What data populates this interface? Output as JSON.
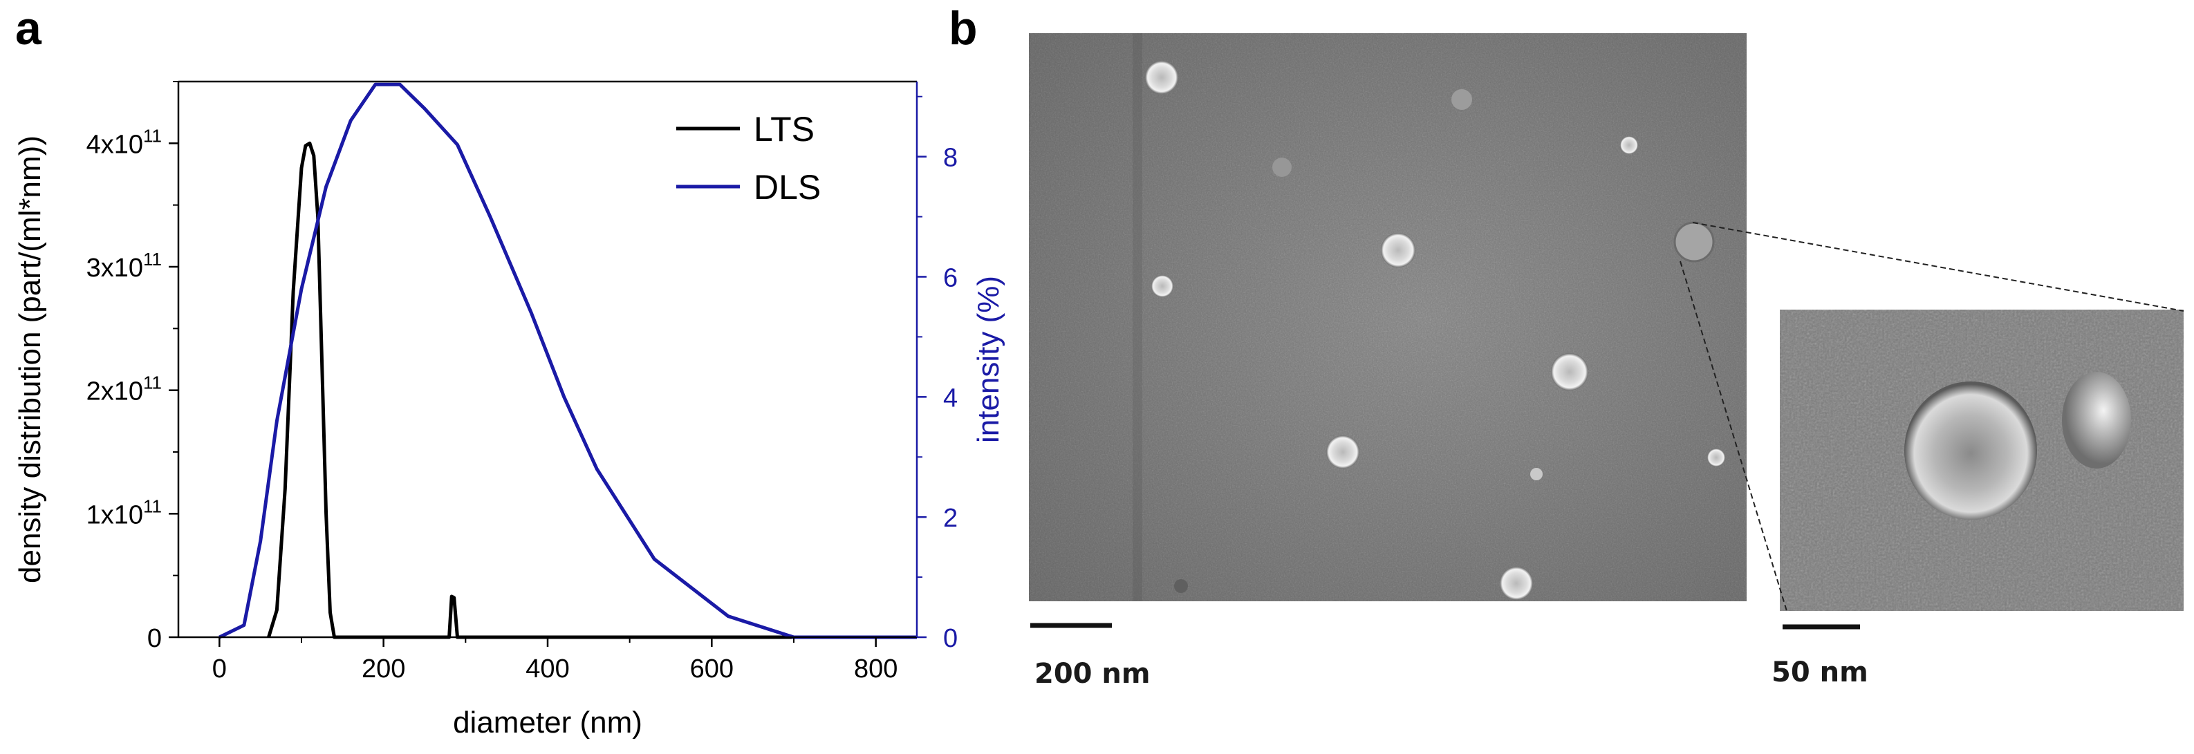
{
  "panels": {
    "a": "a",
    "b": "b"
  },
  "chart_data": {
    "type": "line",
    "x": {
      "label": "diameter (nm)",
      "lim": [
        -50,
        850
      ],
      "ticks": [
        0,
        200,
        400,
        600,
        800
      ]
    },
    "y_left": {
      "label": "density distribution (part/(ml*nm))",
      "lim": [
        0,
        450000000000.0
      ],
      "ticks": [
        {
          "value": 0,
          "base": "0",
          "exp": ""
        },
        {
          "value": 100000000000.0,
          "base": "1x10",
          "exp": "11"
        },
        {
          "value": 200000000000.0,
          "base": "2x10",
          "exp": "11"
        },
        {
          "value": 300000000000.0,
          "base": "3x10",
          "exp": "11"
        },
        {
          "value": 400000000000.0,
          "base": "4x10",
          "exp": "11"
        }
      ]
    },
    "y_right": {
      "label": "intensity (%)",
      "lim": [
        0,
        9.25
      ],
      "ticks": [
        0,
        2,
        4,
        6,
        8
      ],
      "color": "#1a1aa6"
    },
    "legend": {
      "position": "top-right"
    },
    "series": [
      {
        "name": "LTS",
        "axis": "left",
        "color": "#000000",
        "x": [
          60,
          70,
          80,
          90,
          100,
          105,
          110,
          115,
          120,
          125,
          130,
          135,
          140,
          145,
          280,
          283,
          286,
          290,
          293,
          700
        ],
        "y": [
          0,
          22000000000.0,
          120000000000.0,
          280000000000.0,
          380000000000.0,
          398000000000.0,
          400000000000.0,
          390000000000.0,
          340000000000.0,
          220000000000.0,
          100000000000.0,
          20000000000.0,
          0,
          0,
          0,
          33000000000.0,
          32000000000.0,
          0,
          0,
          0
        ]
      },
      {
        "name": "DLS",
        "axis": "right",
        "color": "#1a1aa6",
        "x": [
          0,
          30,
          50,
          70,
          100,
          130,
          160,
          190,
          220,
          250,
          290,
          330,
          380,
          420,
          460,
          530,
          620,
          700,
          850
        ],
        "y": [
          0,
          0.2,
          1.6,
          3.6,
          5.8,
          7.5,
          8.6,
          9.2,
          9.2,
          8.8,
          8.2,
          7.0,
          5.4,
          4.0,
          2.8,
          1.3,
          0.35,
          0,
          0
        ]
      }
    ]
  },
  "tem": {
    "main_scale": "200 nm",
    "inset_scale": "50 nm"
  }
}
